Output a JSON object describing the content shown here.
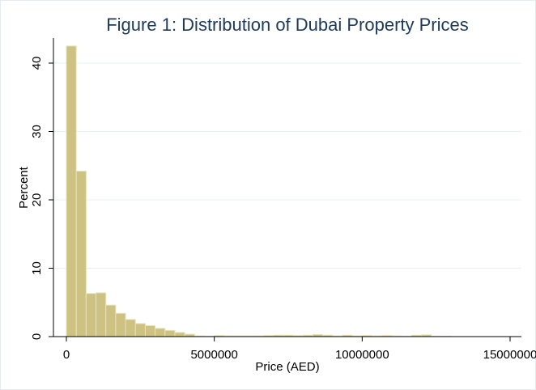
{
  "chart_data": {
    "type": "bar",
    "title": "Figure 1: Distribution of Dubai Property Prices",
    "xlabel": "Price (AED)",
    "ylabel": "Percent",
    "xlim": [
      0,
      15000000
    ],
    "ylim": [
      0,
      45
    ],
    "x_ticks": [
      0,
      5000000,
      10000000,
      15000000
    ],
    "x_tick_labels": [
      "0",
      "5000000",
      "10000000",
      "15000000"
    ],
    "y_ticks": [
      0,
      10,
      20,
      30,
      40
    ],
    "y_tick_labels": [
      "0",
      "10",
      "20",
      "30",
      "40"
    ],
    "grid": true,
    "bin_width": 333333,
    "bins": [
      {
        "x0": 0,
        "x1": 333333,
        "value": 42.5
      },
      {
        "x0": 333333,
        "x1": 666667,
        "value": 24.2
      },
      {
        "x0": 666667,
        "x1": 1000000,
        "value": 6.3
      },
      {
        "x0": 1000000,
        "x1": 1333333,
        "value": 6.4
      },
      {
        "x0": 1333333,
        "x1": 1666667,
        "value": 4.6
      },
      {
        "x0": 1666667,
        "x1": 2000000,
        "value": 3.4
      },
      {
        "x0": 2000000,
        "x1": 2333333,
        "value": 2.5
      },
      {
        "x0": 2333333,
        "x1": 2666667,
        "value": 1.9
      },
      {
        "x0": 2666667,
        "x1": 3000000,
        "value": 1.6
      },
      {
        "x0": 3000000,
        "x1": 3333333,
        "value": 1.2
      },
      {
        "x0": 3333333,
        "x1": 3666667,
        "value": 0.9
      },
      {
        "x0": 3666667,
        "x1": 4000000,
        "value": 0.6
      },
      {
        "x0": 4000000,
        "x1": 4333333,
        "value": 0.35
      },
      {
        "x0": 4333333,
        "x1": 4666667,
        "value": 0.1
      },
      {
        "x0": 4666667,
        "x1": 5000000,
        "value": 0.05
      },
      {
        "x0": 5000000,
        "x1": 5333333,
        "value": 0.15
      },
      {
        "x0": 5333333,
        "x1": 5666667,
        "value": 0.1
      },
      {
        "x0": 5666667,
        "x1": 6000000,
        "value": 0.1
      },
      {
        "x0": 6000000,
        "x1": 6333333,
        "value": 0.1
      },
      {
        "x0": 6333333,
        "x1": 6666667,
        "value": 0.1
      },
      {
        "x0": 6666667,
        "x1": 7000000,
        "value": 0.15
      },
      {
        "x0": 7000000,
        "x1": 7333333,
        "value": 0.2
      },
      {
        "x0": 7333333,
        "x1": 7666667,
        "value": 0.2
      },
      {
        "x0": 7666667,
        "x1": 8000000,
        "value": 0.15
      },
      {
        "x0": 8000000,
        "x1": 8333333,
        "value": 0.2
      },
      {
        "x0": 8333333,
        "x1": 8666667,
        "value": 0.3
      },
      {
        "x0": 8666667,
        "x1": 9000000,
        "value": 0.2
      },
      {
        "x0": 9000000,
        "x1": 9333333,
        "value": 0.1
      },
      {
        "x0": 9333333,
        "x1": 9666667,
        "value": 0.2
      },
      {
        "x0": 9666667,
        "x1": 10000000,
        "value": 0.1
      },
      {
        "x0": 10000000,
        "x1": 10333333,
        "value": 0.15
      },
      {
        "x0": 10333333,
        "x1": 10666667,
        "value": 0.1
      },
      {
        "x0": 10666667,
        "x1": 11000000,
        "value": 0.15
      },
      {
        "x0": 11000000,
        "x1": 11333333,
        "value": 0.1
      },
      {
        "x0": 11333333,
        "x1": 11666667,
        "value": 0.05
      },
      {
        "x0": 11666667,
        "x1": 12000000,
        "value": 0.2
      },
      {
        "x0": 12000000,
        "x1": 12333333,
        "value": 0.25
      },
      {
        "x0": 12333333,
        "x1": 12666667,
        "value": 0.05
      },
      {
        "x0": 12666667,
        "x1": 13000000,
        "value": 0.05
      }
    ]
  },
  "colors": {
    "bar_fill": "#cdc281",
    "bar_stroke": "#e8e2b8",
    "gridline": "#e7f2f2",
    "axis": "#000000",
    "title": "#1c3a5c",
    "background": "#ffffff"
  }
}
